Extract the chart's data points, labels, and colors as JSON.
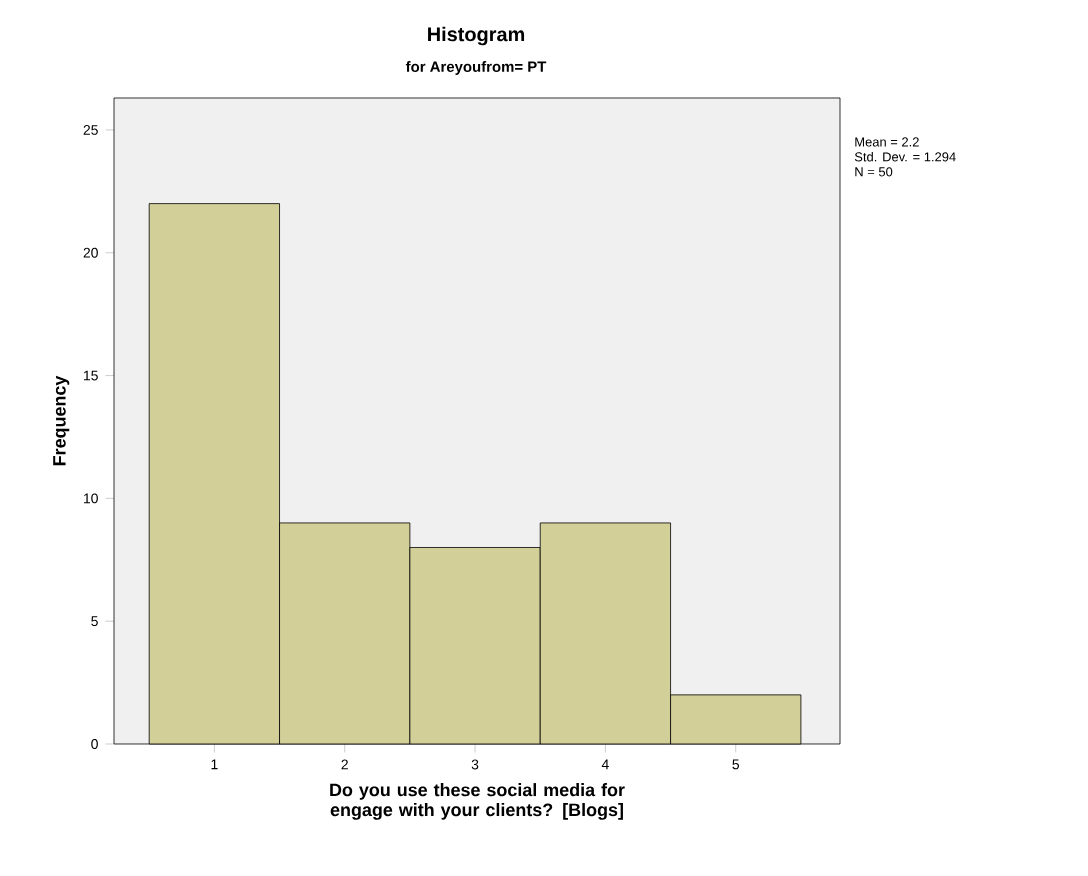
{
  "chart_data": {
    "type": "histogram",
    "title": "Histogram",
    "subtitle": "for Areyoufrom= PT",
    "xlabel": "Do you use these social media for engage with your clients? [Blogs]",
    "ylabel": "Frequency",
    "bins": [
      0.5,
      1.5,
      2.5,
      3.5,
      4.5,
      5.5
    ],
    "values": [
      22,
      9,
      8,
      9,
      2
    ],
    "color": "#d3cf99",
    "xlim": [
      0.23,
      5.8
    ],
    "ylim": [
      0,
      26.3
    ],
    "xticks": [
      1,
      2,
      3,
      4,
      5
    ],
    "yticks": [
      0,
      5,
      10,
      15,
      20,
      25
    ],
    "annotations": [
      "Mean = 2.2",
      "Std. Dev. = 1.294",
      "N = 50"
    ],
    "grid": false
  }
}
